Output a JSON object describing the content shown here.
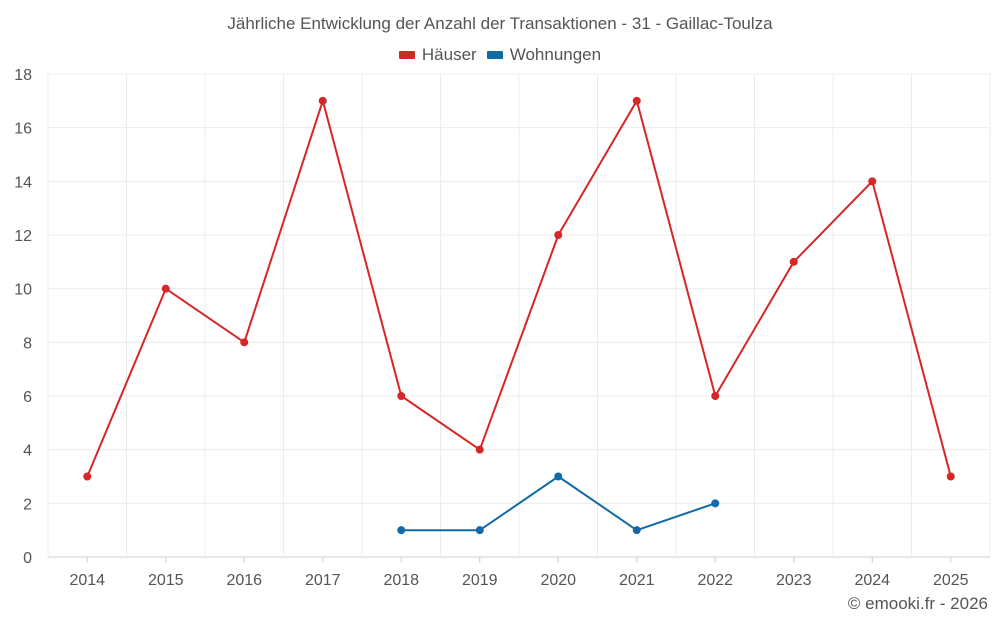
{
  "chart_data": {
    "type": "line",
    "title": "Jährliche Entwicklung der Anzahl der Transaktionen - 31 - Gaillac-Toulza",
    "categories": [
      "2014",
      "2015",
      "2016",
      "2017",
      "2018",
      "2019",
      "2020",
      "2021",
      "2022",
      "2023",
      "2024",
      "2025"
    ],
    "series": [
      {
        "name": "Häuser",
        "color": "#d62728",
        "values": [
          3,
          10,
          8,
          17,
          6,
          4,
          12,
          17,
          6,
          11,
          14,
          3
        ]
      },
      {
        "name": "Wohnungen",
        "color": "#0e6ba8",
        "values": [
          null,
          null,
          null,
          null,
          1,
          1,
          3,
          1,
          2,
          null,
          null,
          null
        ]
      }
    ],
    "ylim": [
      0,
      18
    ],
    "yticks": [
      0,
      2,
      4,
      6,
      8,
      10,
      12,
      14,
      16,
      18
    ],
    "xlabel": "",
    "ylabel": "",
    "grid": true,
    "legend": "top-center"
  },
  "credit": "© emooki.fr - 2026"
}
